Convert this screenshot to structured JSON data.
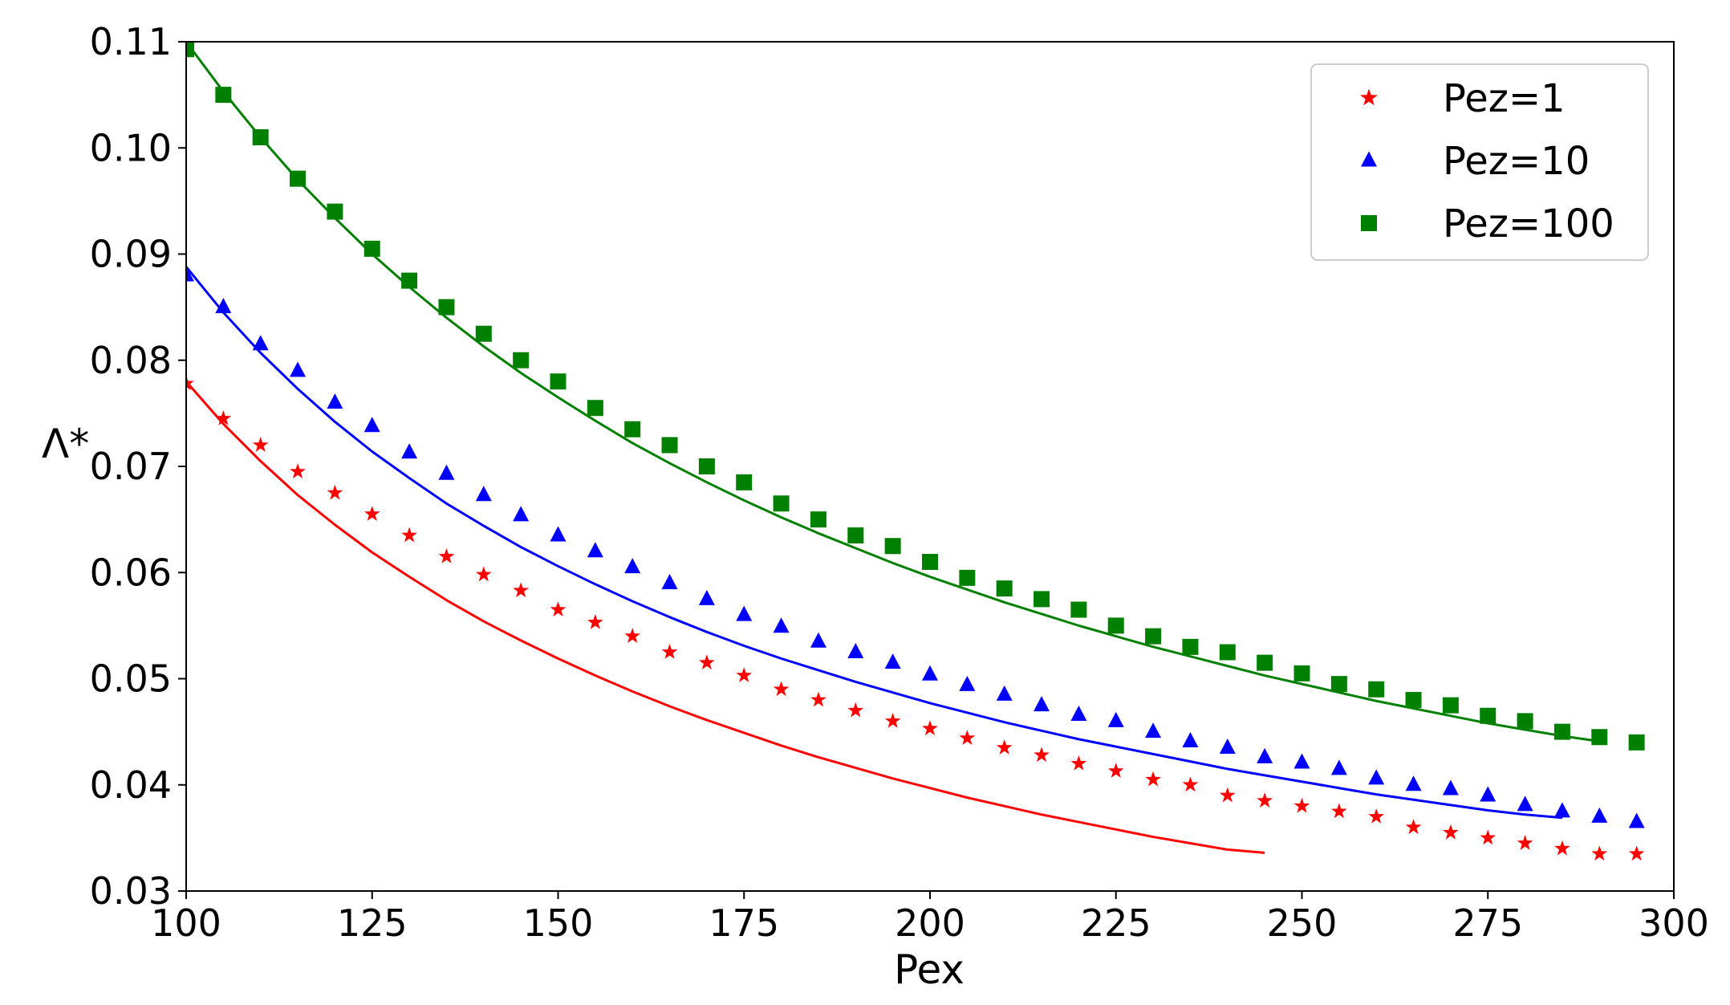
{
  "chart_data": {
    "type": "line",
    "title": "",
    "xlabel": "Pex",
    "ylabel": "Λ*",
    "xlim": [
      100,
      300
    ],
    "ylim": [
      0.03,
      0.11
    ],
    "xticks": [
      100,
      125,
      150,
      175,
      200,
      225,
      250,
      275,
      300
    ],
    "xtick_labels": [
      "100",
      "125",
      "150",
      "175",
      "200",
      "225",
      "250",
      "275",
      "300"
    ],
    "yticks": [
      0.03,
      0.04,
      0.05,
      0.06,
      0.07,
      0.08,
      0.09,
      0.1,
      0.11
    ],
    "ytick_labels": [
      "0.03",
      "0.04",
      "0.05",
      "0.06",
      "0.07",
      "0.08",
      "0.09",
      "0.10",
      "0.11"
    ],
    "grid": false,
    "legend_position": "top-right",
    "x": [
      100,
      105,
      110,
      115,
      120,
      125,
      130,
      135,
      140,
      145,
      150,
      155,
      160,
      165,
      170,
      175,
      180,
      185,
      190,
      195,
      200,
      205,
      210,
      215,
      220,
      225,
      230,
      235,
      240,
      245,
      250,
      255,
      260,
      265,
      270,
      275,
      280,
      285,
      290,
      295
    ],
    "series": [
      {
        "name": "Pez=1",
        "marker": "star",
        "color": "#ff0000",
        "values": [
          0.0778,
          0.0745,
          0.072,
          0.0695,
          0.0675,
          0.0655,
          0.0635,
          0.0615,
          0.0598,
          0.0583,
          0.0565,
          0.0553,
          0.054,
          0.0525,
          0.0515,
          0.0503,
          0.049,
          0.048,
          0.047,
          0.046,
          0.0453,
          0.0444,
          0.0435,
          0.0428,
          0.042,
          0.0413,
          0.0405,
          0.04,
          0.039,
          0.0385,
          0.038,
          0.0375,
          0.037,
          0.036,
          0.0355,
          0.035,
          0.0345,
          0.034,
          0.0335,
          0.0335
        ],
        "line_y": [
          0.078,
          0.074,
          0.0705,
          0.0673,
          0.0645,
          0.0619,
          0.0596,
          0.0574,
          0.0554,
          0.0536,
          0.0519,
          0.0503,
          0.0488,
          0.0474,
          0.0461,
          0.0449,
          0.0437,
          0.0426,
          0.0416,
          0.0406,
          0.0397,
          0.0388,
          0.038,
          0.0372,
          0.0365,
          0.0358,
          0.0351,
          0.0345,
          0.0339,
          0.0336
        ]
      },
      {
        "name": "Pez=10",
        "marker": "triangle",
        "color": "#0000ff",
        "values": [
          0.088,
          0.085,
          0.0815,
          0.079,
          0.076,
          0.0738,
          0.0713,
          0.0693,
          0.0673,
          0.0654,
          0.0635,
          0.062,
          0.0605,
          0.059,
          0.0575,
          0.056,
          0.0549,
          0.0535,
          0.0525,
          0.0515,
          0.0504,
          0.0494,
          0.0485,
          0.0475,
          0.0466,
          0.046,
          0.045,
          0.0441,
          0.0435,
          0.0426,
          0.0421,
          0.0415,
          0.0406,
          0.04,
          0.0396,
          0.039,
          0.0381,
          0.0375,
          0.037,
          0.0365
        ],
        "line_y": [
          0.0888,
          0.0845,
          0.0807,
          0.0773,
          0.0742,
          0.0714,
          0.0689,
          0.0665,
          0.0644,
          0.0624,
          0.0606,
          0.0589,
          0.0573,
          0.0558,
          0.0544,
          0.0531,
          0.0519,
          0.0508,
          0.0497,
          0.0487,
          0.0477,
          0.0468,
          0.0459,
          0.0451,
          0.0443,
          0.0436,
          0.0429,
          0.0422,
          0.0415,
          0.0409,
          0.0403,
          0.0397,
          0.0391,
          0.0386,
          0.0381,
          0.0376,
          0.0372,
          0.0369
        ]
      },
      {
        "name": "Pez=100",
        "marker": "square",
        "color": "#008000",
        "values": [
          0.1093,
          0.105,
          0.101,
          0.0971,
          0.094,
          0.0905,
          0.0875,
          0.085,
          0.0825,
          0.08,
          0.078,
          0.0755,
          0.0735,
          0.072,
          0.07,
          0.0685,
          0.0665,
          0.065,
          0.0635,
          0.0625,
          0.061,
          0.0595,
          0.0585,
          0.0575,
          0.0565,
          0.055,
          0.054,
          0.053,
          0.0525,
          0.0515,
          0.0505,
          0.0495,
          0.049,
          0.048,
          0.0475,
          0.0465,
          0.046,
          0.045,
          0.0445,
          0.044
        ],
        "line_y": [
          0.11,
          0.1053,
          0.101,
          0.097,
          0.0934,
          0.09,
          0.0869,
          0.084,
          0.0813,
          0.0788,
          0.0765,
          0.0743,
          0.0722,
          0.0703,
          0.0685,
          0.0668,
          0.0652,
          0.0637,
          0.0623,
          0.0609,
          0.0596,
          0.0584,
          0.0572,
          0.0561,
          0.055,
          0.054,
          0.053,
          0.0521,
          0.0512,
          0.0503,
          0.0495,
          0.0487,
          0.0479,
          0.0472,
          0.0465,
          0.0458,
          0.0452,
          0.0446,
          0.0441
        ]
      }
    ]
  }
}
